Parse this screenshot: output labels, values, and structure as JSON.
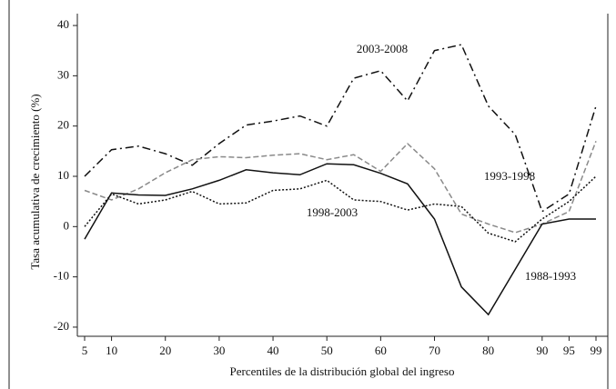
{
  "chart_data": {
    "type": "line",
    "ylabel": "Tasa acumulativa de crecimiento (%)",
    "xlabel": "Percentiles de la distribución global del ingreso",
    "categories": [
      "5",
      "10",
      null,
      "20",
      null,
      "30",
      null,
      "40",
      null,
      "50",
      null,
      "60",
      null,
      "70",
      null,
      "80",
      null,
      "90",
      "95",
      "99"
    ],
    "ylim": [
      -22,
      42
    ],
    "yticks": [
      -20,
      -10,
      0,
      10,
      20,
      30,
      40
    ],
    "series": [
      {
        "name": "2003-2008",
        "color": "#111111",
        "dash": "9,4,2,4",
        "values": [
          10,
          15.3,
          16,
          14.5,
          12.2,
          16.5,
          20.2,
          21,
          22,
          20,
          29.5,
          31,
          25,
          35,
          36.2,
          24,
          18.3,
          3,
          6.5,
          24
        ]
      },
      {
        "name": "1993-1998",
        "color": "#8a8a8a",
        "dash": "6,3",
        "values": [
          7.2,
          5.3,
          7.5,
          10.7,
          13.3,
          13.9,
          13.7,
          14.2,
          14.5,
          13.3,
          14.3,
          11,
          16.5,
          11.5,
          2.5,
          0.5,
          -1.2,
          0.5,
          3,
          17
        ]
      },
      {
        "name": "1998-2003",
        "color": "#111111",
        "dash": "2,2",
        "values": [
          0,
          6.5,
          4.5,
          5.3,
          7,
          4.5,
          4.7,
          7.2,
          7.5,
          9.2,
          5.3,
          5,
          3.3,
          4.5,
          4,
          -1.3,
          -3,
          1.5,
          5,
          10
        ]
      },
      {
        "name": "1988-1993",
        "color": "#111111",
        "dash": "none",
        "values": [
          -2.5,
          6.7,
          6.3,
          6.2,
          7.5,
          9.2,
          11.3,
          10.7,
          10.3,
          12.5,
          12.3,
          10.6,
          8.5,
          1.5,
          -12,
          -17.5,
          -8.5,
          0.5,
          1.5,
          1.5
        ]
      }
    ]
  }
}
